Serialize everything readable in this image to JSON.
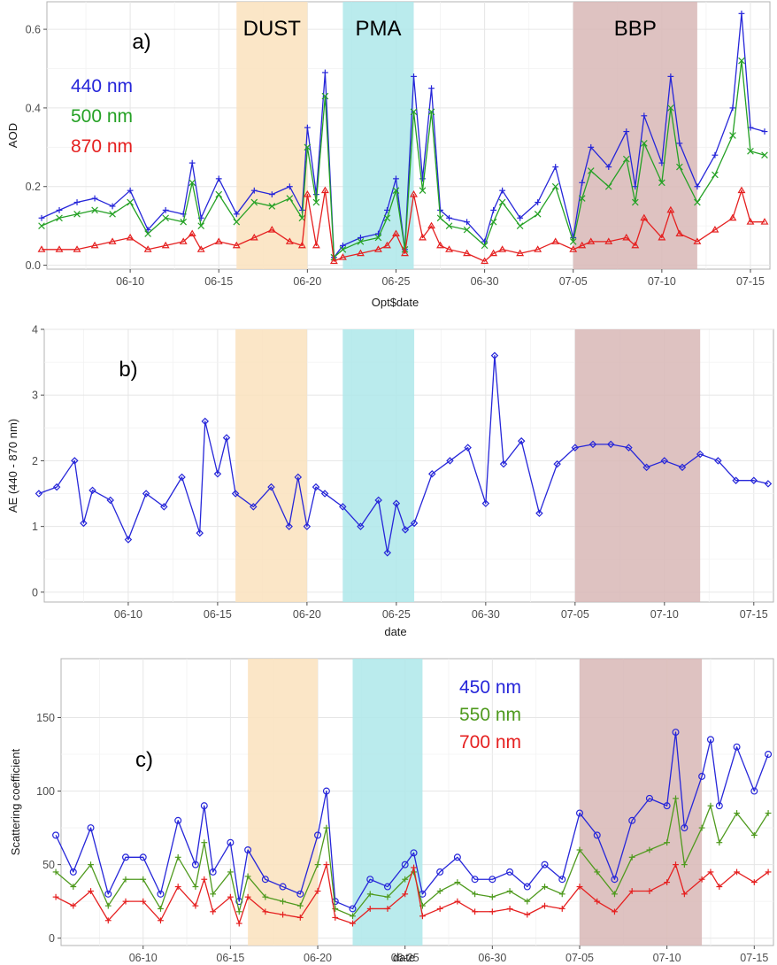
{
  "chart_data": [
    {
      "type": "line",
      "panel_label": "a)",
      "xlabel": "Opt$date",
      "ylabel": "AOD",
      "ylim": [
        -0.01,
        0.67
      ],
      "y_ticks": [
        0.0,
        0.2,
        0.4,
        0.6
      ],
      "y_tick_labels": [
        "0.0",
        "0.2",
        "0.4",
        "0.6"
      ],
      "grid": true,
      "legend_position": "top-left",
      "bands": [
        {
          "label": "DUST",
          "start": "06-16",
          "end": "06-20",
          "color": "#fae2bd"
        },
        {
          "label": "PMA",
          "start": "06-22",
          "end": "06-26",
          "color": "#aee8ea"
        },
        {
          "label": "BBP",
          "start": "07-05",
          "end": "07-12",
          "color": "#d8b7b6"
        }
      ],
      "series": [
        {
          "name": "440 nm",
          "color": "#2626d9",
          "marker": "plus",
          "x": [
            "06-05",
            "06-06",
            "06-07",
            "06-08",
            "06-09",
            "06-10",
            "06-11",
            "06-12",
            "06-13",
            "06-13.5",
            "06-14",
            "06-15",
            "06-16",
            "06-17",
            "06-18",
            "06-19",
            "06-19.7",
            "06-20",
            "06-20.5",
            "06-21",
            "06-21.5",
            "06-22",
            "06-23",
            "06-24",
            "06-24.5",
            "06-25",
            "06-25.5",
            "06-26",
            "06-26.5",
            "06-27",
            "06-27.5",
            "06-28",
            "06-29",
            "06-30",
            "06-30.5",
            "07-01",
            "07-02",
            "07-03",
            "07-04",
            "07-05",
            "07-05.5",
            "07-06",
            "07-07",
            "07-08",
            "07-08.5",
            "07-09",
            "07-10",
            "07-10.5",
            "07-11",
            "07-12",
            "07-13",
            "07-14",
            "07-14.5",
            "07-15",
            "07-15.8"
          ],
          "values": [
            0.12,
            0.14,
            0.16,
            0.17,
            0.15,
            0.19,
            0.09,
            0.14,
            0.13,
            0.26,
            0.12,
            0.22,
            0.13,
            0.19,
            0.18,
            0.2,
            0.14,
            0.35,
            0.18,
            0.49,
            0.02,
            0.05,
            0.07,
            0.08,
            0.14,
            0.22,
            0.04,
            0.48,
            0.22,
            0.45,
            0.14,
            0.12,
            0.11,
            0.06,
            0.14,
            0.19,
            0.12,
            0.16,
            0.25,
            0.07,
            0.21,
            0.3,
            0.25,
            0.34,
            0.2,
            0.38,
            0.26,
            0.48,
            0.31,
            0.2,
            0.28,
            0.4,
            0.64,
            0.35,
            0.34
          ]
        },
        {
          "name": "500 nm",
          "color": "#25a125",
          "marker": "cross",
          "x": [
            "06-05",
            "06-06",
            "06-07",
            "06-08",
            "06-09",
            "06-10",
            "06-11",
            "06-12",
            "06-13",
            "06-13.5",
            "06-14",
            "06-15",
            "06-16",
            "06-17",
            "06-18",
            "06-19",
            "06-19.7",
            "06-20",
            "06-20.5",
            "06-21",
            "06-21.5",
            "06-22",
            "06-23",
            "06-24",
            "06-24.5",
            "06-25",
            "06-25.5",
            "06-26",
            "06-26.5",
            "06-27",
            "06-27.5",
            "06-28",
            "06-29",
            "06-30",
            "06-30.5",
            "07-01",
            "07-02",
            "07-03",
            "07-04",
            "07-05",
            "07-05.5",
            "07-06",
            "07-07",
            "07-08",
            "07-08.5",
            "07-09",
            "07-10",
            "07-10.5",
            "07-11",
            "07-12",
            "07-13",
            "07-14",
            "07-14.5",
            "07-15",
            "07-15.8"
          ],
          "values": [
            0.1,
            0.12,
            0.13,
            0.14,
            0.13,
            0.16,
            0.08,
            0.12,
            0.11,
            0.21,
            0.1,
            0.18,
            0.11,
            0.16,
            0.15,
            0.17,
            0.12,
            0.3,
            0.16,
            0.43,
            0.02,
            0.04,
            0.06,
            0.07,
            0.12,
            0.19,
            0.04,
            0.39,
            0.19,
            0.39,
            0.12,
            0.1,
            0.09,
            0.05,
            0.11,
            0.16,
            0.1,
            0.13,
            0.2,
            0.06,
            0.17,
            0.24,
            0.2,
            0.27,
            0.16,
            0.31,
            0.21,
            0.4,
            0.25,
            0.16,
            0.23,
            0.33,
            0.52,
            0.29,
            0.28
          ]
        },
        {
          "name": "870 nm",
          "color": "#e52020",
          "marker": "triangle",
          "x": [
            "06-05",
            "06-06",
            "06-07",
            "06-08",
            "06-09",
            "06-10",
            "06-11",
            "06-12",
            "06-13",
            "06-13.5",
            "06-14",
            "06-15",
            "06-16",
            "06-17",
            "06-18",
            "06-19",
            "06-19.7",
            "06-20",
            "06-20.5",
            "06-21",
            "06-21.5",
            "06-22",
            "06-23",
            "06-24",
            "06-24.5",
            "06-25",
            "06-25.5",
            "06-26",
            "06-26.5",
            "06-27",
            "06-27.5",
            "06-28",
            "06-29",
            "06-30",
            "06-30.5",
            "07-01",
            "07-02",
            "07-03",
            "07-04",
            "07-05",
            "07-05.5",
            "07-06",
            "07-07",
            "07-08",
            "07-08.5",
            "07-09",
            "07-10",
            "07-10.5",
            "07-11",
            "07-12",
            "07-13",
            "07-14",
            "07-14.5",
            "07-15",
            "07-15.8"
          ],
          "values": [
            0.04,
            0.04,
            0.04,
            0.05,
            0.06,
            0.07,
            0.04,
            0.05,
            0.06,
            0.08,
            0.04,
            0.06,
            0.05,
            0.07,
            0.09,
            0.06,
            0.05,
            0.18,
            0.05,
            0.19,
            0.01,
            0.02,
            0.03,
            0.04,
            0.05,
            0.08,
            0.03,
            0.18,
            0.07,
            0.1,
            0.05,
            0.04,
            0.03,
            0.01,
            0.03,
            0.04,
            0.03,
            0.04,
            0.06,
            0.04,
            0.05,
            0.06,
            0.06,
            0.07,
            0.05,
            0.12,
            0.07,
            0.14,
            0.08,
            0.06,
            0.09,
            0.12,
            0.19,
            0.11,
            0.11
          ]
        }
      ]
    },
    {
      "type": "line",
      "panel_label": "b)",
      "xlabel": "date",
      "ylabel": "AE (440 - 870 nm)",
      "ylim": [
        -0.15,
        4.0
      ],
      "y_ticks": [
        0,
        1,
        2,
        3,
        4
      ],
      "y_tick_labels": [
        "0",
        "1",
        "2",
        "3",
        "4"
      ],
      "grid": true,
      "bands": [
        {
          "start": "06-16",
          "end": "06-20",
          "color": "#fae2bd"
        },
        {
          "start": "06-22",
          "end": "06-26",
          "color": "#aee8ea"
        },
        {
          "start": "07-05",
          "end": "07-12",
          "color": "#d8b7b6"
        }
      ],
      "series": [
        {
          "color": "#2626d9",
          "marker": "diamond",
          "x": [
            "06-05",
            "06-06",
            "06-07",
            "06-07.5",
            "06-08",
            "06-09",
            "06-10",
            "06-11",
            "06-12",
            "06-13",
            "06-14",
            "06-14.3",
            "06-15",
            "06-15.5",
            "06-16",
            "06-17",
            "06-18",
            "06-19",
            "06-19.5",
            "06-20",
            "06-20.5",
            "06-21",
            "06-22",
            "06-23",
            "06-24",
            "06-24.5",
            "06-25",
            "06-25.5",
            "06-26",
            "06-27",
            "06-28",
            "06-29",
            "06-30",
            "06-30.5",
            "07-01",
            "07-02",
            "07-03",
            "07-04",
            "07-05",
            "07-06",
            "07-07",
            "07-08",
            "07-09",
            "07-10",
            "07-11",
            "07-12",
            "07-13",
            "07-14",
            "07-15",
            "07-15.8"
          ],
          "values": [
            1.5,
            1.6,
            2.0,
            1.05,
            1.55,
            1.4,
            0.8,
            1.5,
            1.3,
            1.75,
            0.9,
            2.6,
            1.8,
            2.35,
            1.5,
            1.3,
            1.6,
            1.0,
            1.75,
            1.0,
            1.6,
            1.5,
            1.3,
            1.0,
            1.4,
            0.6,
            1.35,
            0.95,
            1.05,
            1.8,
            2.0,
            2.2,
            1.35,
            3.6,
            1.95,
            2.3,
            1.2,
            1.95,
            2.2,
            2.25,
            2.25,
            2.2,
            1.9,
            2.0,
            1.9,
            2.1,
            2.0,
            1.7,
            1.7,
            1.65
          ]
        }
      ]
    },
    {
      "type": "line",
      "panel_label": "c)",
      "xlabel": "date",
      "ylabel": "Scattering coefficient",
      "ylim": [
        -5,
        190
      ],
      "y_ticks": [
        0,
        50,
        100,
        150
      ],
      "y_tick_labels": [
        "0",
        "50",
        "100",
        "150"
      ],
      "grid": true,
      "legend_position": "top-center",
      "bands": [
        {
          "start": "06-16",
          "end": "06-20",
          "color": "#fae2bd"
        },
        {
          "start": "06-22",
          "end": "06-26",
          "color": "#aee8ea"
        },
        {
          "start": "07-05",
          "end": "07-12",
          "color": "#d8b7b6"
        }
      ],
      "series": [
        {
          "name": "450 nm",
          "color": "#2626d9",
          "marker": "circle",
          "x": [
            "06-05",
            "06-06",
            "06-07",
            "06-08",
            "06-09",
            "06-10",
            "06-11",
            "06-12",
            "06-13",
            "06-13.5",
            "06-14",
            "06-15",
            "06-15.5",
            "06-16",
            "06-17",
            "06-18",
            "06-19",
            "06-20",
            "06-20.5",
            "06-21",
            "06-22",
            "06-23",
            "06-24",
            "06-25",
            "06-25.5",
            "06-26",
            "06-27",
            "06-28",
            "06-29",
            "06-30",
            "07-01",
            "07-02",
            "07-03",
            "07-04",
            "07-05",
            "07-06",
            "07-07",
            "07-08",
            "07-09",
            "07-10",
            "07-10.5",
            "07-11",
            "07-12",
            "07-12.5",
            "07-13",
            "07-14",
            "07-15",
            "07-15.8"
          ],
          "values": [
            70,
            45,
            75,
            30,
            55,
            55,
            30,
            80,
            50,
            90,
            45,
            65,
            25,
            60,
            40,
            35,
            30,
            70,
            100,
            25,
            20,
            40,
            35,
            50,
            58,
            30,
            45,
            55,
            40,
            40,
            45,
            35,
            50,
            40,
            85,
            70,
            40,
            80,
            95,
            90,
            140,
            75,
            110,
            135,
            90,
            130,
            100,
            125
          ]
        },
        {
          "name": "550 nm",
          "color": "#4f9a1e",
          "marker": "plus",
          "x": [
            "06-05",
            "06-06",
            "06-07",
            "06-08",
            "06-09",
            "06-10",
            "06-11",
            "06-12",
            "06-13",
            "06-13.5",
            "06-14",
            "06-15",
            "06-15.5",
            "06-16",
            "06-17",
            "06-18",
            "06-19",
            "06-20",
            "06-20.5",
            "06-21",
            "06-22",
            "06-23",
            "06-24",
            "06-25",
            "06-25.5",
            "06-26",
            "06-27",
            "06-28",
            "06-29",
            "06-30",
            "07-01",
            "07-02",
            "07-03",
            "07-04",
            "07-05",
            "07-06",
            "07-07",
            "07-08",
            "07-09",
            "07-10",
            "07-10.5",
            "07-11",
            "07-12",
            "07-12.5",
            "07-13",
            "07-14",
            "07-15",
            "07-15.8"
          ],
          "values": [
            45,
            35,
            50,
            22,
            40,
            40,
            20,
            55,
            35,
            65,
            30,
            45,
            18,
            42,
            28,
            25,
            22,
            50,
            75,
            20,
            15,
            30,
            28,
            40,
            45,
            22,
            32,
            38,
            30,
            28,
            32,
            25,
            35,
            30,
            60,
            45,
            30,
            55,
            60,
            65,
            95,
            50,
            75,
            90,
            65,
            85,
            70,
            85
          ]
        },
        {
          "name": "700 nm",
          "color": "#e52020",
          "marker": "plus",
          "x": [
            "06-05",
            "06-06",
            "06-07",
            "06-08",
            "06-09",
            "06-10",
            "06-11",
            "06-12",
            "06-13",
            "06-13.5",
            "06-14",
            "06-15",
            "06-15.5",
            "06-16",
            "06-17",
            "06-18",
            "06-19",
            "06-20",
            "06-20.5",
            "06-21",
            "06-22",
            "06-23",
            "06-24",
            "06-25",
            "06-25.5",
            "06-26",
            "06-27",
            "06-28",
            "06-29",
            "06-30",
            "07-01",
            "07-02",
            "07-03",
            "07-04",
            "07-05",
            "07-06",
            "07-07",
            "07-08",
            "07-09",
            "07-10",
            "07-10.5",
            "07-11",
            "07-12",
            "07-12.5",
            "07-13",
            "07-14",
            "07-15",
            "07-15.8"
          ],
          "values": [
            28,
            22,
            32,
            12,
            25,
            25,
            12,
            35,
            22,
            40,
            18,
            28,
            10,
            28,
            18,
            16,
            14,
            32,
            50,
            14,
            10,
            20,
            20,
            30,
            48,
            15,
            20,
            25,
            18,
            18,
            20,
            16,
            22,
            20,
            35,
            25,
            18,
            32,
            32,
            38,
            50,
            30,
            40,
            45,
            35,
            45,
            38,
            45
          ]
        }
      ]
    }
  ],
  "x_axis": {
    "tick_labels": [
      "06-10",
      "06-15",
      "06-20",
      "06-25",
      "06-30",
      "07-05",
      "07-10",
      "07-15"
    ]
  }
}
